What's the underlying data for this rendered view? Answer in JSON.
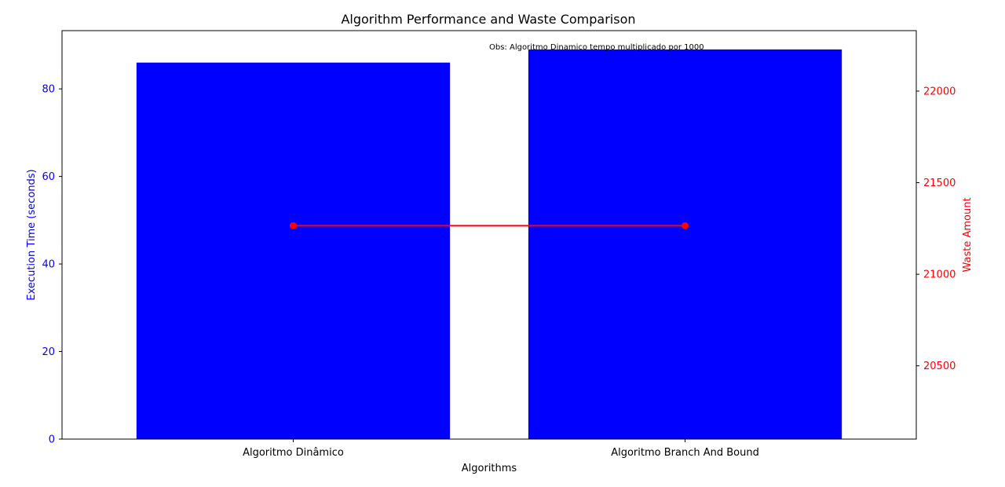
{
  "chart_data": {
    "type": "bar",
    "title": "Algorithm Performance and Waste Comparison",
    "xlabel": "Algorithms",
    "categories": [
      "Algoritmo Dinâmico",
      "Algoritmo Branch And Bound"
    ],
    "annotation": "Obs: Algoritmo Dinamico tempo multiplicado por 1000",
    "left_axis": {
      "label": "Execution Time (seconds)",
      "color": "#0000ff",
      "ylim": [
        0,
        93.3
      ],
      "ticks": [
        0,
        20,
        40,
        60,
        80
      ]
    },
    "right_axis": {
      "label": "Waste Amount",
      "color": "#ff0000",
      "ylim": [
        20100,
        22330
      ],
      "ticks": [
        20500,
        21000,
        21500,
        22000
      ]
    },
    "series": [
      {
        "type": "bar",
        "axis": "left",
        "color": "#0000ff",
        "values": [
          86.0,
          89.0
        ]
      },
      {
        "type": "line",
        "axis": "right",
        "color": "#ff0000",
        "marker": "circle",
        "values": [
          21265,
          21265
        ]
      }
    ],
    "grid": false
  }
}
